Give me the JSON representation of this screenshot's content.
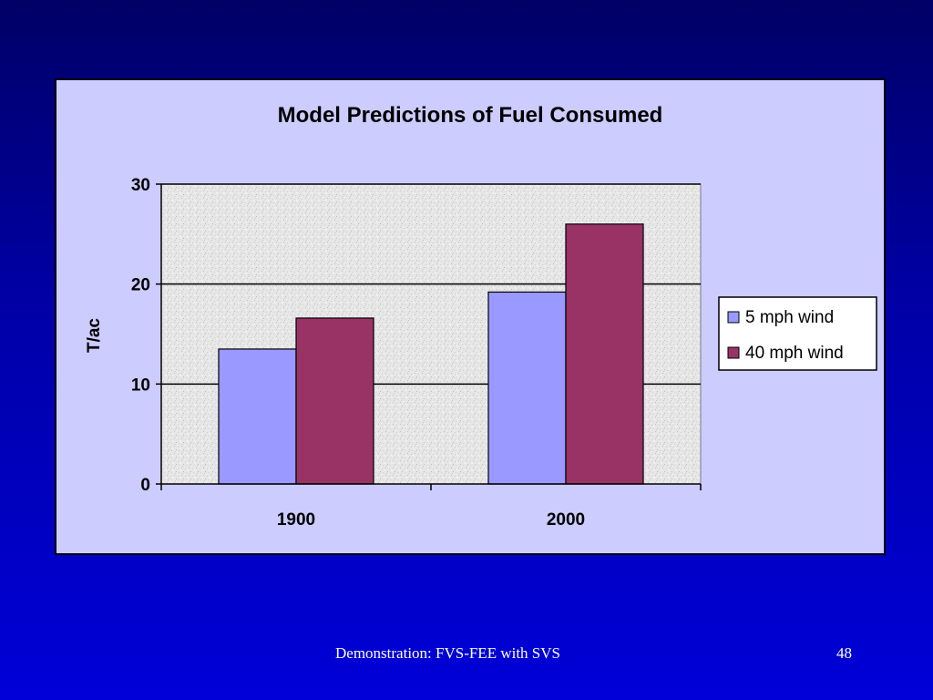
{
  "slide": {
    "footer": "Demonstration: FVS-FEE with SVS",
    "page_number": "48"
  },
  "colors": {
    "background_top": "#000066",
    "background_bottom": "#0000d8",
    "panel": "#ccccff",
    "plot_area": "#e6e6e6",
    "series_5mph": "#9999ff",
    "series_40mph": "#993366"
  },
  "chart_data": {
    "type": "bar",
    "title": "Model Predictions of Fuel Consumed",
    "xlabel": "",
    "ylabel": "T/ac",
    "categories": [
      "1900",
      "2000"
    ],
    "ylim": [
      0,
      30
    ],
    "yticks": [
      "0",
      "10",
      "20",
      "30"
    ],
    "grid": true,
    "legend_position": "right",
    "series": [
      {
        "name": "5 mph wind",
        "values": [
          13.5,
          19.2
        ],
        "color": "#9999ff"
      },
      {
        "name": "40 mph wind",
        "values": [
          16.6,
          26.0
        ],
        "color": "#993366"
      }
    ]
  }
}
